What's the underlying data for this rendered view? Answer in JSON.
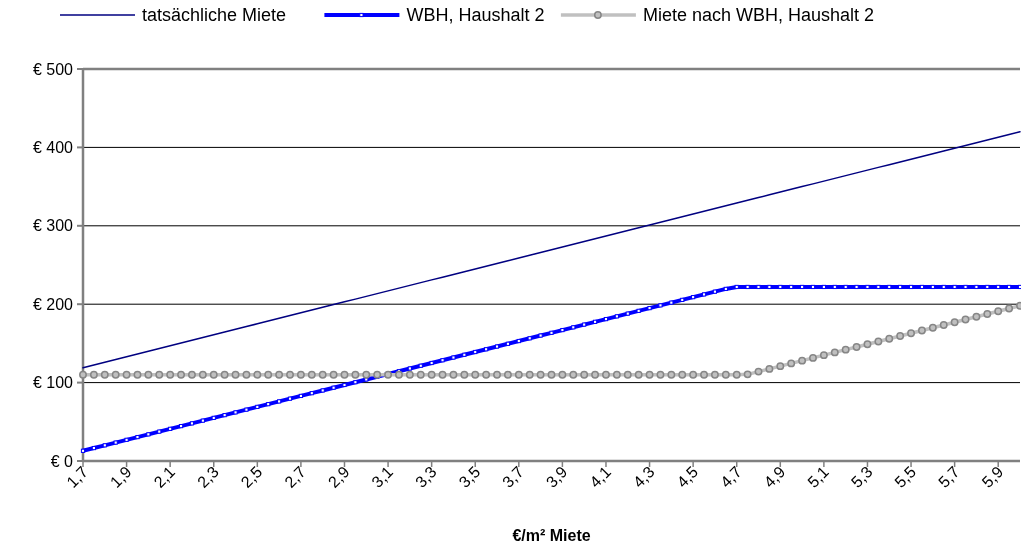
{
  "chart_data": {
    "type": "line",
    "xlabel": "€/m² Miete",
    "categories": [
      "1,7",
      null,
      null,
      null,
      "1,9",
      null,
      null,
      null,
      "2,1",
      null,
      null,
      null,
      "2,3",
      null,
      null,
      null,
      "2,5",
      null,
      null,
      null,
      "2,7",
      null,
      null,
      null,
      "2,9",
      null,
      null,
      null,
      "3,1",
      null,
      null,
      null,
      "3,3",
      null,
      null,
      null,
      "3,5",
      null,
      null,
      null,
      "3,7",
      null,
      null,
      null,
      "3,9",
      null,
      null,
      null,
      "4,1",
      null,
      null,
      null,
      "4,3",
      null,
      null,
      null,
      "4,5",
      null,
      null,
      null,
      "4,7",
      null,
      null,
      null,
      "4,9",
      null,
      null,
      null,
      "5,1",
      null,
      null,
      null,
      "5,3",
      null,
      null,
      null,
      "5,5",
      null,
      null,
      null,
      "5,7",
      null,
      null,
      null,
      "5,9",
      null,
      null
    ],
    "series": [
      {
        "name": "tatsächliche Miete",
        "color": "#000080",
        "marker": "none",
        "values": [
          119,
          122.5,
          126,
          129.5,
          133,
          136.5,
          140,
          143.5,
          147,
          150.5,
          154,
          157.5,
          161,
          164.5,
          168,
          171.5,
          175,
          178.5,
          182,
          185.5,
          189,
          192.5,
          196,
          199.5,
          203,
          206.5,
          210,
          213.5,
          217,
          220.5,
          224,
          227.5,
          231,
          234.5,
          238,
          241.5,
          245,
          248.5,
          252,
          255.5,
          259,
          262.5,
          266,
          269.5,
          273,
          276.5,
          280,
          283.5,
          287,
          290.5,
          294,
          297.5,
          301,
          304.5,
          308,
          311.5,
          315,
          318.5,
          322,
          325.5,
          329,
          332.5,
          336,
          339.5,
          343,
          346.5,
          350,
          353.5,
          357,
          360.5,
          364,
          367.5,
          371,
          374.5,
          378,
          381.5,
          385,
          388.5,
          392,
          395.5,
          399,
          402.5,
          406,
          409.5,
          413,
          416.5,
          420
        ]
      },
      {
        "name": "WBH, Haushalt 2",
        "color": "#0000ff",
        "marker": "square",
        "values": [
          13,
          16.5,
          20,
          23.5,
          27,
          30.5,
          34,
          37.5,
          41,
          44.5,
          48,
          51.5,
          55,
          58.5,
          62,
          65.5,
          69,
          72.5,
          76,
          79.5,
          83,
          86.5,
          90,
          93.5,
          97,
          100.5,
          104,
          107.5,
          111,
          114.5,
          118,
          121.5,
          125,
          128.5,
          132,
          135.5,
          139,
          142.5,
          146,
          149.5,
          153,
          156.5,
          160,
          163.5,
          167,
          170.5,
          174,
          177.5,
          181,
          184.5,
          188,
          191.5,
          195,
          198.5,
          202,
          205.5,
          209,
          212.5,
          216,
          219.5,
          222,
          222,
          222,
          222,
          222,
          222,
          222,
          222,
          222,
          222,
          222,
          222,
          222,
          222,
          222,
          222,
          222,
          222,
          222,
          222,
          222,
          222,
          222,
          222,
          222,
          222,
          222
        ]
      },
      {
        "name": "Miete nach WBH, Haushalt 2",
        "color": "#c0c0c0",
        "marker": "circle",
        "values": [
          110,
          110,
          110,
          110,
          110,
          110,
          110,
          110,
          110,
          110,
          110,
          110,
          110,
          110,
          110,
          110,
          110,
          110,
          110,
          110,
          110,
          110,
          110,
          110,
          110,
          110,
          110,
          110,
          110,
          110,
          110,
          110,
          110,
          110,
          110,
          110,
          110,
          110,
          110,
          110,
          110,
          110,
          110,
          110,
          110,
          110,
          110,
          110,
          110,
          110,
          110,
          110,
          110,
          110,
          110,
          110,
          110,
          110,
          110,
          110,
          110,
          110.5,
          114,
          117.5,
          121,
          124.5,
          128,
          131.5,
          135,
          138.5,
          142,
          145.5,
          149,
          152.5,
          156,
          159.5,
          163,
          166.5,
          170,
          173.5,
          177,
          180.5,
          184,
          187.5,
          191,
          194.5,
          198
        ]
      }
    ],
    "ylim": [
      0,
      500
    ],
    "yticks": [
      {
        "value": 0,
        "label": "€ 0"
      },
      {
        "value": 100,
        "label": "€ 100"
      },
      {
        "value": 200,
        "label": "€ 200"
      },
      {
        "value": 300,
        "label": "€ 300"
      },
      {
        "value": 400,
        "label": "€ 400"
      },
      {
        "value": 500,
        "label": "€ 500"
      }
    ],
    "grid": "y",
    "legend": "top",
    "line_style": "solid"
  }
}
